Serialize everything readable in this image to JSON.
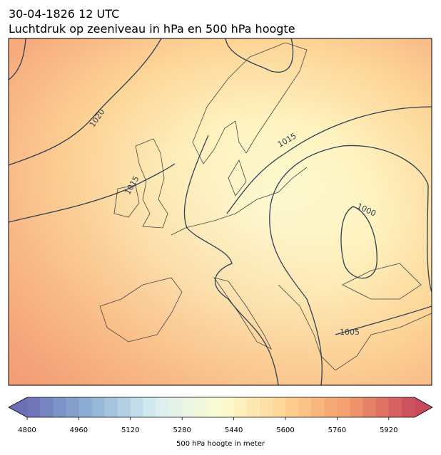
{
  "header": {
    "date": "30-04-1826 12 UTC",
    "title": "Luchtdruk op zeeniveau in hPa en 500 hPa hoogte"
  },
  "map": {
    "contour_labels": [
      "1020",
      "1015",
      "1015",
      "1000",
      "1005"
    ]
  },
  "colorbar": {
    "label": "500 hPa hoogte in meter",
    "range": [
      4800,
      6000
    ],
    "step": 40,
    "ticks": [
      4800,
      4960,
      5120,
      5280,
      5440,
      5600,
      5760,
      5920
    ]
  }
}
